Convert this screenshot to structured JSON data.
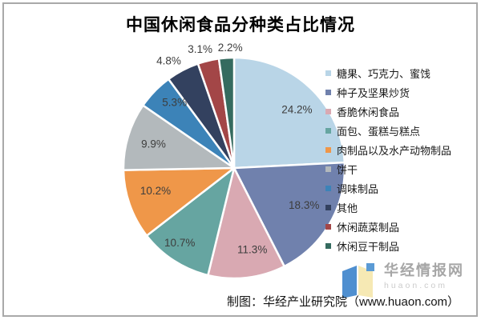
{
  "chart_data": {
    "type": "pie",
    "title": "中国休闲食品分种类占比情况",
    "unit": "%",
    "start_angle_deg": 0,
    "direction": "clockwise",
    "legend_position": "right",
    "slice_border_color": "#ffffff",
    "slices": [
      {
        "label": "糖果、巧克力、蜜饯",
        "value": 24.2,
        "color": "#b9d5e7",
        "label_inside": true
      },
      {
        "label": "种子及坚果炒货",
        "value": 18.3,
        "color": "#7081ad",
        "label_inside": true
      },
      {
        "label": "香脆休闲食品",
        "value": 11.3,
        "color": "#d9a9b2",
        "label_inside": true
      },
      {
        "label": "面包、蛋糕与糕点",
        "value": 10.7,
        "color": "#66a5a1",
        "label_inside": true
      },
      {
        "label": "肉制品以及水产动物制品",
        "value": 10.2,
        "color": "#ef9749",
        "label_inside": true
      },
      {
        "label": "饼干",
        "value": 9.9,
        "color": "#b3b9bc",
        "label_inside": true
      },
      {
        "label": "调味制品",
        "value": 5.3,
        "color": "#3c83b8",
        "label_inside": true
      },
      {
        "label": "其他",
        "value": 4.8,
        "color": "#33415f",
        "label_inside": false
      },
      {
        "label": "休闲蔬菜制品",
        "value": 3.1,
        "color": "#a34647",
        "label_inside": false
      },
      {
        "label": "休闲豆干制品",
        "value": 2.2,
        "color": "#356b5f",
        "label_inside": false
      }
    ]
  },
  "footer": {
    "credit": "制图：华经产业研究院（www.huaon.com）"
  },
  "watermark": {
    "site_name": "华经情报网",
    "site_domain": "huaon.com",
    "logo_colors": {
      "left_panel": "#4f8fd0",
      "right_panel": "#f6e9b4",
      "accent_square": "#5b9bd5"
    }
  }
}
